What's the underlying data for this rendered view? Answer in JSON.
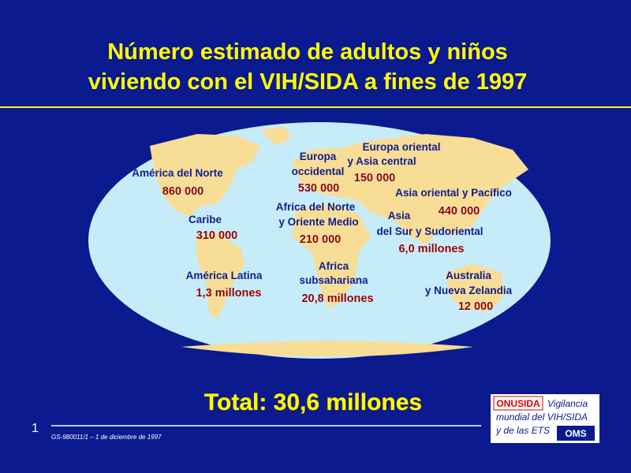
{
  "header": {
    "title_lines": [
      "Número estimado de adultos y niños",
      "viviendo con el VIH/SIDA a fines de 1997"
    ]
  },
  "regions": [
    {
      "label_lines": [
        "América del Norte"
      ],
      "value": "860 000"
    },
    {
      "label_lines": [
        "Caribe"
      ],
      "value": "310 000"
    },
    {
      "label_lines": [
        "América Latina"
      ],
      "value": "1,3 millones"
    },
    {
      "label_lines": [
        "Europa",
        "occidental"
      ],
      "value": "530 000"
    },
    {
      "label_lines": [
        "Europa oriental",
        "y Asia central"
      ],
      "value": "150 000"
    },
    {
      "label_lines": [
        "Africa del Norte",
        "y Oriente Medio"
      ],
      "value": "210 000"
    },
    {
      "label_lines": [
        "Africa",
        "subsahariana"
      ],
      "value": "20,8 millones"
    },
    {
      "label_lines": [
        "Asia oriental y Pacífico"
      ],
      "value": "440 000"
    },
    {
      "label_lines": [
        "Asia",
        "del Sur y Sudoriental"
      ],
      "value": "6,0 millones"
    },
    {
      "label_lines": [
        "Australia",
        "y Nueva Zelandia"
      ],
      "value": "12 000"
    }
  ],
  "total": "Total: 30,6 millones",
  "footer": {
    "slide_number": "1",
    "reference": "GS-980011/1 – 1 de diciembre de 1997"
  },
  "logo": {
    "onusida": "ONUSIDA",
    "lines": [
      "Vigilancia",
      "mundial del VIH/SIDA",
      "y de las ETS"
    ],
    "oms": "OMS"
  }
}
